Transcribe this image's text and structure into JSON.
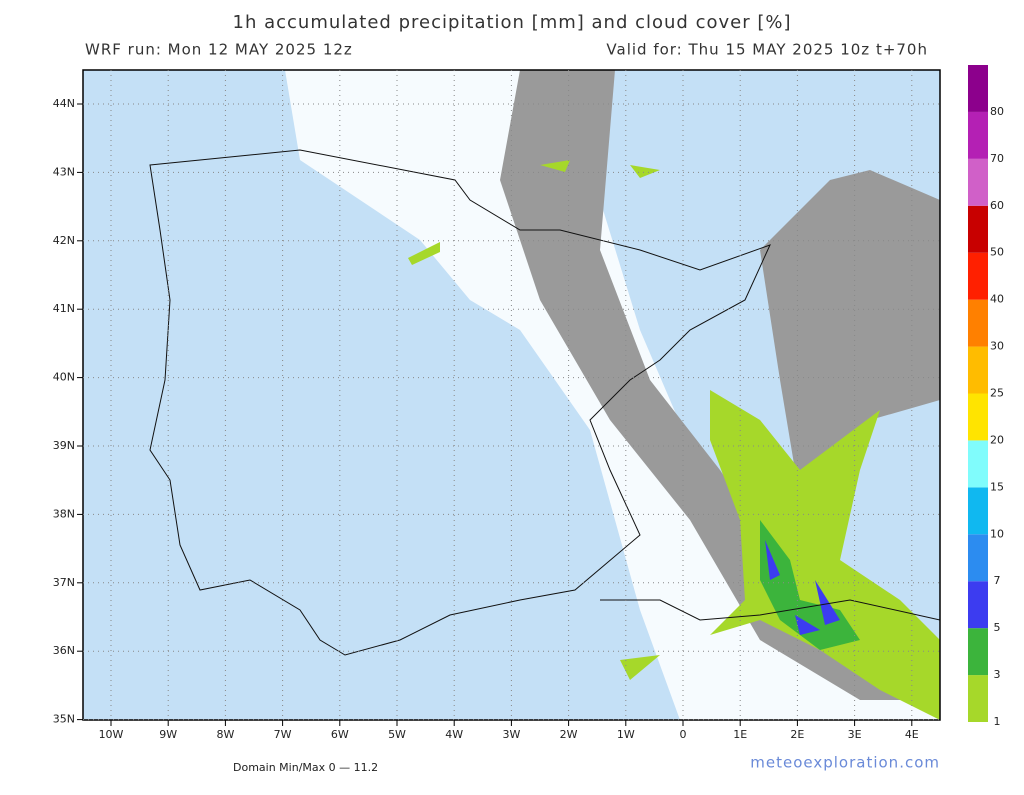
{
  "header": {
    "title": "1h accumulated precipitation [mm] and cloud cover [%]",
    "run": "WRF run: Mon 12 MAY 2025 12z",
    "valid": "Valid for: Thu 15 MAY 2025 10z  t+70h"
  },
  "map": {
    "lon_labels": [
      "10W",
      "9W",
      "8W",
      "7W",
      "6W",
      "5W",
      "4W",
      "3W",
      "2W",
      "1W",
      "0",
      "1E",
      "2E",
      "3E",
      "4E"
    ],
    "lat_labels": [
      "44N",
      "43N",
      "42N",
      "41N",
      "40N",
      "39N",
      "38N",
      "37N",
      "36N",
      "35N"
    ]
  },
  "colorbar": {
    "labels": [
      "1",
      "3",
      "5",
      "7",
      "10",
      "15",
      "20",
      "25",
      "30",
      "40",
      "50",
      "60",
      "70",
      "80"
    ],
    "colors": [
      "#a6d82a",
      "#3cb43c",
      "#3c3cf0",
      "#2c8cf0",
      "#10b8f0",
      "#80fcfc",
      "#ffe400",
      "#ffbc00",
      "#ff8000",
      "#ff2000",
      "#c80000",
      "#d060c8",
      "#b420b4",
      "#8c008c"
    ]
  },
  "footer": {
    "minmax": "Domain Min/Max 0 — 11.2",
    "credit": "meteoexploration.com"
  }
}
